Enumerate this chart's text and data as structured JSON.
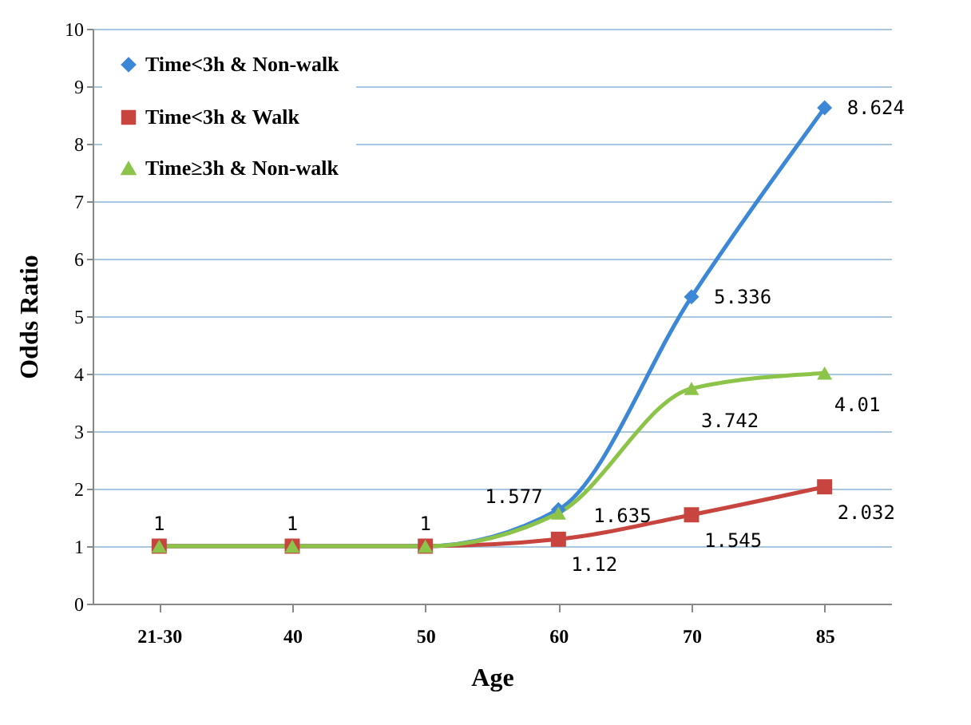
{
  "chart_data": {
    "type": "line",
    "xlabel": "Age",
    "ylabel": "Odds  Ratio",
    "categories": [
      "21-30",
      "40",
      "50",
      "60",
      "70",
      "85"
    ],
    "series": [
      {
        "name": "Time<3h & Non-walk",
        "color": "#3c87d6",
        "marker": "diamond",
        "values": [
          1,
          1,
          1,
          1.635,
          5.336,
          8.624
        ],
        "value_labels": [
          "1",
          "1",
          "1",
          "1.635",
          "5.336",
          "8.624"
        ]
      },
      {
        "name": "Time<3h & Walk",
        "color": "#c8453f",
        "marker": "square",
        "values": [
          1,
          1,
          1,
          1.12,
          1.545,
          2.032
        ],
        "value_labels": [
          null,
          null,
          null,
          "1.12",
          "1.545",
          "2.032"
        ]
      },
      {
        "name": "Time≥3h & Non-walk",
        "color": "#8cc44a",
        "marker": "triangle",
        "values": [
          1,
          1,
          1,
          1.577,
          3.742,
          4.01
        ],
        "value_labels": [
          null,
          null,
          null,
          "1.577",
          "3.742",
          "4.01"
        ]
      }
    ],
    "ylim": [
      0,
      10
    ],
    "yticks": [
      0,
      1,
      2,
      3,
      4,
      5,
      6,
      7,
      8,
      9,
      10
    ],
    "grid": "y",
    "legend": "top left"
  }
}
